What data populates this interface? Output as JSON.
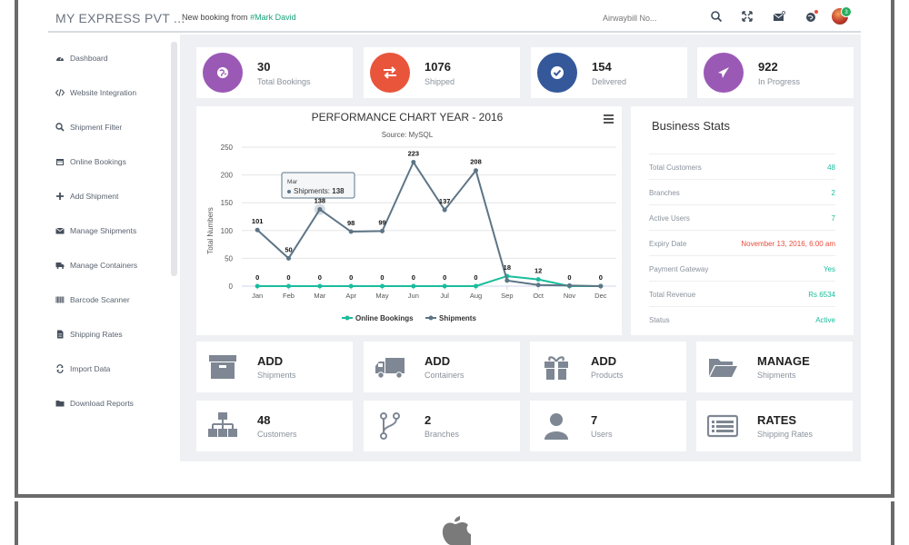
{
  "header": {
    "brand": "MY EXPRESS PVT ...",
    "notice_prefix": "New booking from",
    "notice_name": "#Mark David",
    "search_placeholder": "Airwaybill No...",
    "avatar_badge": "3"
  },
  "sidebar": {
    "items": [
      {
        "label": "Dashboard",
        "icon": "dashboard-icon"
      },
      {
        "label": "Website Integration",
        "icon": "code-icon"
      },
      {
        "label": "Shipment Filter",
        "icon": "search-icon"
      },
      {
        "label": "Online Bookings",
        "icon": "calendar-icon"
      },
      {
        "label": "Add Shipment",
        "icon": "plus-icon"
      },
      {
        "label": "Manage Shipments",
        "icon": "envelope-icon"
      },
      {
        "label": "Manage Containers",
        "icon": "truck-icon"
      },
      {
        "label": "Barcode Scanner",
        "icon": "barcode-icon"
      },
      {
        "label": "Shipping Rates",
        "icon": "file-icon"
      },
      {
        "label": "Import Data",
        "icon": "exchange-icon"
      },
      {
        "label": "Download Reports",
        "icon": "folder-icon"
      }
    ]
  },
  "stats": [
    {
      "value": "30",
      "label": "Total Bookings",
      "color": "#9b59b6",
      "icon": "globe-icon"
    },
    {
      "value": "1076",
      "label": "Shipped",
      "color": "#e9553b",
      "icon": "exchange-icon"
    },
    {
      "value": "154",
      "label": "Delivered",
      "color": "#34589a",
      "icon": "check-icon"
    },
    {
      "value": "922",
      "label": "In Progress",
      "color": "#9b59b6",
      "icon": "plane-icon"
    }
  ],
  "chart_data": {
    "type": "line",
    "title": "PERFORMANCE CHART YEAR - 2016",
    "subtitle": "Source: MySQL",
    "ylabel": "Total Numbers",
    "xlabel": "",
    "categories": [
      "Jan",
      "Feb",
      "Mar",
      "Apr",
      "May",
      "Jun",
      "Jul",
      "Aug",
      "Sep",
      "Oct",
      "Nov",
      "Dec"
    ],
    "ylim": [
      0,
      250
    ],
    "yticks": [
      0,
      50,
      100,
      150,
      200,
      250
    ],
    "series": [
      {
        "name": "Online Bookings",
        "color": "#1abc9c",
        "values": [
          0,
          0,
          0,
          0,
          0,
          0,
          0,
          0,
          18,
          12,
          0,
          0
        ]
      },
      {
        "name": "Shipments",
        "color": "#5d7586",
        "values": [
          101,
          50,
          138,
          98,
          99,
          223,
          137,
          208,
          10,
          2,
          1,
          0
        ]
      }
    ],
    "data_labels": {
      "Online Bookings": [
        "0",
        "0",
        "0",
        "0",
        "0",
        "0",
        "0",
        "0",
        "18",
        "12",
        "0",
        "0"
      ],
      "Shipments": [
        "101",
        "50",
        "138",
        "98",
        "99",
        "223",
        "137",
        "208",
        "",
        "",
        "",
        ""
      ]
    },
    "tooltip": {
      "category": "Mar",
      "series": "Shipments",
      "value": "138",
      "text": "Shipments: "
    },
    "legend": "bottom-center",
    "grid": true
  },
  "business": {
    "title": "Business Stats",
    "rows": [
      {
        "key": "Total Customers",
        "value": "48",
        "color": "#1abc9c"
      },
      {
        "key": "Branches",
        "value": "2",
        "color": "#1abc9c"
      },
      {
        "key": "Active Users",
        "value": "7",
        "color": "#1abc9c"
      },
      {
        "key": "Expiry Date",
        "value": "November 13, 2016, 6:00 am",
        "color": "#e74c3c"
      },
      {
        "key": "Payment Gateway",
        "value": "Yes",
        "color": "#1abc9c"
      },
      {
        "key": "Total Revenue",
        "value": "Rs 6534",
        "color": "#1abc9c"
      },
      {
        "key": "Status",
        "value": "Active",
        "color": "#1abc9c"
      }
    ]
  },
  "tiles": [
    {
      "big": "ADD",
      "small": "Shipments",
      "icon": "archive-box-icon"
    },
    {
      "big": "ADD",
      "small": "Containers",
      "icon": "truck-icon"
    },
    {
      "big": "ADD",
      "small": "Products",
      "icon": "gift-icon"
    },
    {
      "big": "MANAGE",
      "small": "Shipments",
      "icon": "folder-open-icon"
    },
    {
      "big": "48",
      "small": "Customers",
      "icon": "sitemap-icon"
    },
    {
      "big": "2",
      "small": "Branches",
      "icon": "branch-icon"
    },
    {
      "big": "7",
      "small": "Users",
      "icon": "user-icon"
    },
    {
      "big": "RATES",
      "small": "Shipping Rates",
      "icon": "list-icon"
    }
  ]
}
